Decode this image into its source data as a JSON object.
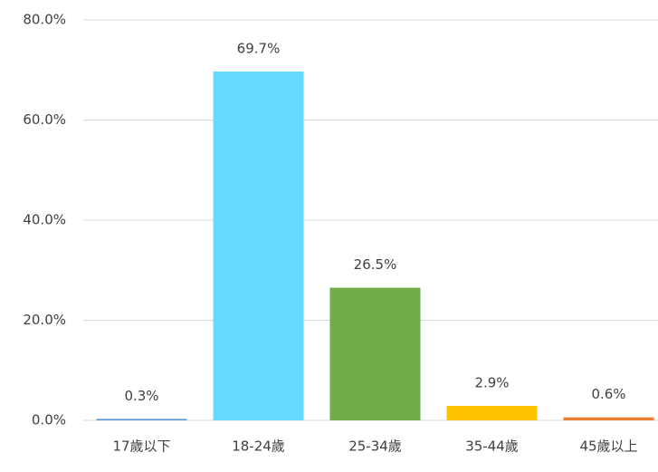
{
  "chart_data": {
    "type": "bar",
    "categories": [
      "17歲以下",
      "18-24歲",
      "25-34歲",
      "35-44歲",
      "45歲以上"
    ],
    "values": [
      0.3,
      69.7,
      26.5,
      2.9,
      0.6
    ],
    "value_labels": [
      "0.3%",
      "69.7%",
      "26.5%",
      "2.9%",
      "0.6%"
    ],
    "colors": [
      "#5b9bd5",
      "#66d9ff",
      "#70ad47",
      "#ffc000",
      "#ed7d31"
    ],
    "ylim": [
      0,
      80
    ],
    "yticks": [
      {
        "value": 0,
        "label": "0.0%"
      },
      {
        "value": 20,
        "label": "20.0%"
      },
      {
        "value": 40,
        "label": "40.0%"
      },
      {
        "value": 60,
        "label": "60.0%"
      },
      {
        "value": 80,
        "label": "80.0%"
      }
    ],
    "grid": true
  }
}
